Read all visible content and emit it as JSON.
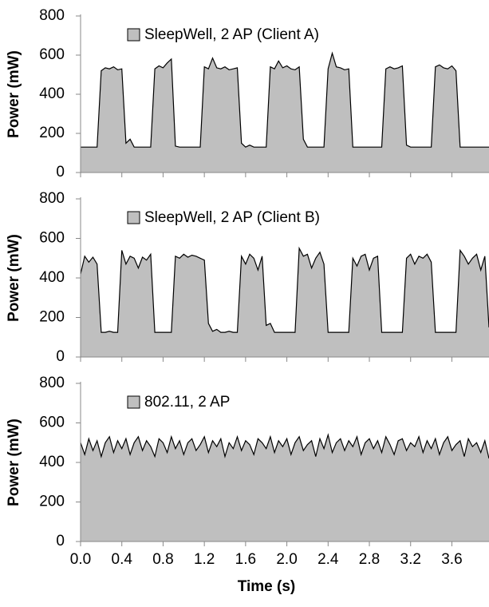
{
  "chart_data": [
    {
      "type": "area",
      "ylabel": "Power (mW)",
      "xlim": [
        0,
        3.96
      ],
      "ylim": [
        0,
        800
      ],
      "yticks": [
        0,
        200,
        400,
        600,
        800
      ],
      "x": [
        0,
        0.04,
        0.08,
        0.12,
        0.16,
        0.2,
        0.24,
        0.28,
        0.32,
        0.36,
        0.4,
        0.44,
        0.48,
        0.52,
        0.56,
        0.6,
        0.64,
        0.68,
        0.72,
        0.76,
        0.8,
        0.84,
        0.88,
        0.92,
        0.96,
        1,
        1.04,
        1.08,
        1.12,
        1.16,
        1.2,
        1.24,
        1.28,
        1.32,
        1.36,
        1.4,
        1.44,
        1.48,
        1.52,
        1.56,
        1.6,
        1.64,
        1.68,
        1.72,
        1.76,
        1.8,
        1.84,
        1.88,
        1.92,
        1.96,
        2,
        2.04,
        2.08,
        2.12,
        2.16,
        2.2,
        2.24,
        2.28,
        2.32,
        2.36,
        2.4,
        2.44,
        2.48,
        2.52,
        2.56,
        2.6,
        2.64,
        2.68,
        2.72,
        2.76,
        2.8,
        2.84,
        2.88,
        2.92,
        2.96,
        3,
        3.04,
        3.08,
        3.12,
        3.16,
        3.2,
        3.24,
        3.28,
        3.32,
        3.36,
        3.4,
        3.44,
        3.48,
        3.52,
        3.56,
        3.6,
        3.64,
        3.68,
        3.72,
        3.76,
        3.8,
        3.84,
        3.88,
        3.92,
        3.96
      ],
      "series": [
        {
          "name": "SleepWell, 2 AP (Client A)",
          "color": "#bfbfbf",
          "line_color": "#000000",
          "values": [
            130,
            130,
            130,
            130,
            130,
            520,
            535,
            530,
            540,
            525,
            530,
            150,
            170,
            130,
            130,
            130,
            130,
            130,
            530,
            545,
            535,
            560,
            580,
            135,
            130,
            130,
            130,
            130,
            130,
            130,
            540,
            530,
            585,
            535,
            530,
            540,
            525,
            530,
            535,
            150,
            130,
            140,
            130,
            130,
            130,
            130,
            540,
            530,
            570,
            535,
            545,
            530,
            525,
            540,
            170,
            130,
            130,
            130,
            130,
            130,
            530,
            610,
            540,
            535,
            525,
            530,
            130,
            130,
            130,
            130,
            130,
            130,
            130,
            130,
            530,
            540,
            530,
            535,
            545,
            140,
            130,
            130,
            130,
            130,
            130,
            130,
            540,
            550,
            535,
            530,
            545,
            520,
            130,
            130,
            130,
            130,
            130,
            130,
            130,
            130
          ]
        }
      ]
    },
    {
      "type": "area",
      "ylabel": "Power (mW)",
      "xlim": [
        0,
        3.96
      ],
      "ylim": [
        0,
        800
      ],
      "yticks": [
        0,
        200,
        400,
        600,
        800
      ],
      "x": [
        0,
        0.04,
        0.08,
        0.12,
        0.16,
        0.2,
        0.24,
        0.28,
        0.32,
        0.36,
        0.4,
        0.44,
        0.48,
        0.52,
        0.56,
        0.6,
        0.64,
        0.68,
        0.72,
        0.76,
        0.8,
        0.84,
        0.88,
        0.92,
        0.96,
        1,
        1.04,
        1.08,
        1.12,
        1.16,
        1.2,
        1.24,
        1.28,
        1.32,
        1.36,
        1.4,
        1.44,
        1.48,
        1.52,
        1.56,
        1.6,
        1.64,
        1.68,
        1.72,
        1.76,
        1.8,
        1.84,
        1.88,
        1.92,
        1.96,
        2,
        2.04,
        2.08,
        2.12,
        2.16,
        2.2,
        2.24,
        2.28,
        2.32,
        2.36,
        2.4,
        2.44,
        2.48,
        2.52,
        2.56,
        2.6,
        2.64,
        2.68,
        2.72,
        2.76,
        2.8,
        2.84,
        2.88,
        2.92,
        2.96,
        3,
        3.04,
        3.08,
        3.12,
        3.16,
        3.2,
        3.24,
        3.28,
        3.32,
        3.36,
        3.4,
        3.44,
        3.48,
        3.52,
        3.56,
        3.6,
        3.64,
        3.68,
        3.72,
        3.76,
        3.8,
        3.84,
        3.88,
        3.92,
        3.96
      ],
      "series": [
        {
          "name": "SleepWell, 2 AP (Client B)",
          "color": "#bfbfbf",
          "line_color": "#000000",
          "values": [
            420,
            510,
            480,
            505,
            470,
            125,
            125,
            130,
            125,
            125,
            540,
            470,
            510,
            500,
            450,
            505,
            490,
            520,
            125,
            125,
            125,
            125,
            125,
            510,
            500,
            520,
            505,
            515,
            510,
            500,
            490,
            170,
            130,
            140,
            125,
            125,
            130,
            125,
            125,
            510,
            470,
            520,
            500,
            440,
            510,
            160,
            170,
            125,
            125,
            125,
            125,
            125,
            125,
            550,
            510,
            520,
            450,
            500,
            530,
            470,
            125,
            125,
            125,
            125,
            125,
            125,
            500,
            460,
            510,
            520,
            440,
            500,
            510,
            125,
            125,
            125,
            125,
            125,
            125,
            500,
            520,
            470,
            510,
            500,
            520,
            480,
            125,
            125,
            125,
            125,
            125,
            125,
            540,
            510,
            470,
            500,
            520,
            440,
            510,
            150
          ]
        }
      ]
    },
    {
      "type": "area",
      "ylabel": "Power (mW)",
      "xlabel": "Time (s)",
      "xlim": [
        0,
        3.96
      ],
      "ylim": [
        0,
        800
      ],
      "yticks": [
        0,
        200,
        400,
        600,
        800
      ],
      "xticks": [
        {
          "value": 0,
          "label": "0.0"
        },
        {
          "value": 0.4,
          "label": "0.4"
        },
        {
          "value": 0.8,
          "label": "0.8"
        },
        {
          "value": 1.2,
          "label": "1.2"
        },
        {
          "value": 1.6,
          "label": "1.6"
        },
        {
          "value": 2,
          "label": "2.0"
        },
        {
          "value": 2.4,
          "label": "2.4"
        },
        {
          "value": 2.8,
          "label": "2.8"
        },
        {
          "value": 3.2,
          "label": "3.2"
        },
        {
          "value": 3.6,
          "label": "3.6"
        }
      ],
      "x": [
        0,
        0.04,
        0.08,
        0.12,
        0.16,
        0.2,
        0.24,
        0.28,
        0.32,
        0.36,
        0.4,
        0.44,
        0.48,
        0.52,
        0.56,
        0.6,
        0.64,
        0.68,
        0.72,
        0.76,
        0.8,
        0.84,
        0.88,
        0.92,
        0.96,
        1,
        1.04,
        1.08,
        1.12,
        1.16,
        1.2,
        1.24,
        1.28,
        1.32,
        1.36,
        1.4,
        1.44,
        1.48,
        1.52,
        1.56,
        1.6,
        1.64,
        1.68,
        1.72,
        1.76,
        1.8,
        1.84,
        1.88,
        1.92,
        1.96,
        2,
        2.04,
        2.08,
        2.12,
        2.16,
        2.2,
        2.24,
        2.28,
        2.32,
        2.36,
        2.4,
        2.44,
        2.48,
        2.52,
        2.56,
        2.6,
        2.64,
        2.68,
        2.72,
        2.76,
        2.8,
        2.84,
        2.88,
        2.92,
        2.96,
        3,
        3.04,
        3.08,
        3.12,
        3.16,
        3.2,
        3.24,
        3.28,
        3.32,
        3.36,
        3.4,
        3.44,
        3.48,
        3.52,
        3.56,
        3.6,
        3.64,
        3.68,
        3.72,
        3.76,
        3.8,
        3.84,
        3.88,
        3.92,
        3.96
      ],
      "series": [
        {
          "name": "802.11, 2 AP",
          "color": "#bfbfbf",
          "line_color": "#000000",
          "values": [
            500,
            440,
            520,
            460,
            510,
            430,
            500,
            530,
            450,
            510,
            470,
            520,
            440,
            500,
            530,
            460,
            510,
            480,
            430,
            520,
            500,
            450,
            530,
            470,
            510,
            440,
            500,
            520,
            460,
            490,
            530,
            450,
            510,
            480,
            520,
            430,
            500,
            470,
            530,
            460,
            510,
            490,
            440,
            520,
            500,
            470,
            530,
            450,
            510,
            480,
            520,
            440,
            500,
            530,
            460,
            490,
            510,
            430,
            520,
            470,
            540,
            450,
            500,
            520,
            460,
            510,
            480,
            530,
            440,
            500,
            520,
            470,
            510,
            450,
            530,
            490,
            440,
            510,
            520,
            460,
            500,
            480,
            530,
            450,
            510,
            470,
            520,
            440,
            500,
            530,
            460,
            490,
            510,
            430,
            520,
            480,
            500,
            450,
            510,
            420
          ]
        }
      ]
    }
  ]
}
